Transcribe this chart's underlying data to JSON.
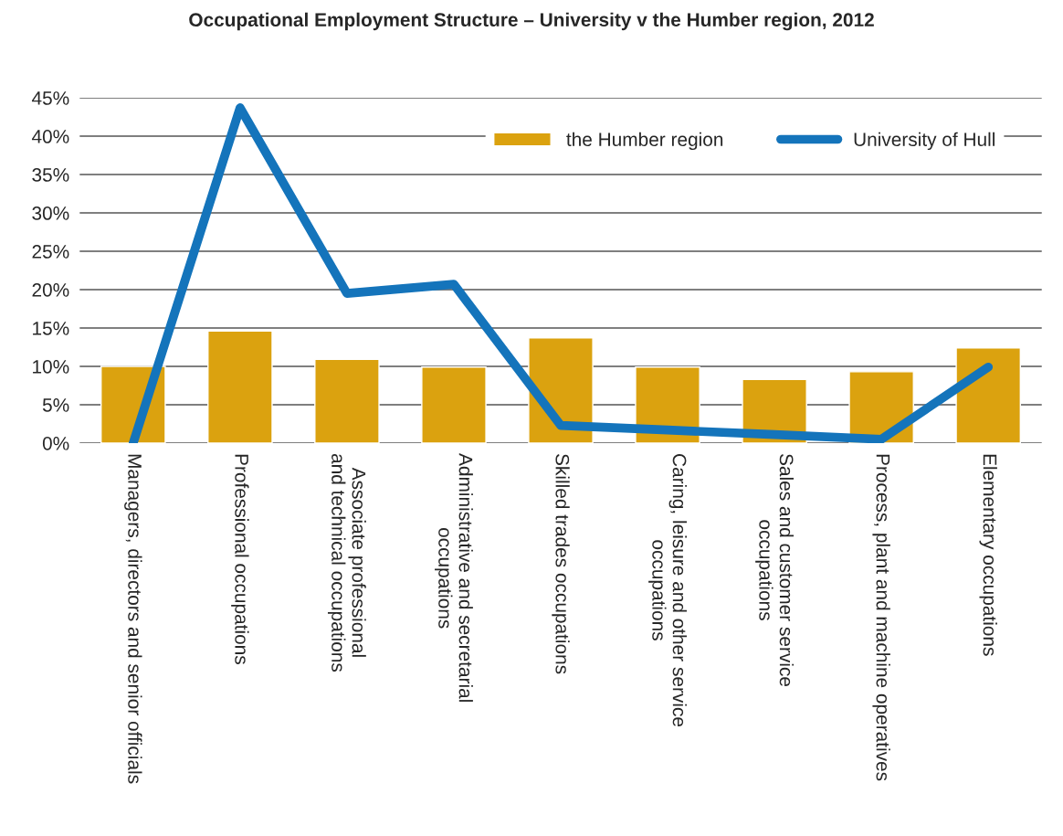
{
  "chart_data": {
    "type": "bar",
    "title": "Occupational Employment Structure – University v the Humber region, 2012",
    "categories": [
      "Managers, directors and senior officials",
      "Professional occupations",
      "Associate professional\nand technical occupations",
      "Administrative and secretarial\noccupations",
      "Skilled trades occupations",
      "Caring, leisure and other service\noccupations",
      "Sales and customer service\noccupations",
      "Process, plant and machine operatives",
      "Elementary occupations"
    ],
    "series": [
      {
        "name": "the Humber region",
        "color": "#dba20f",
        "values": [
          10,
          14.6,
          10.9,
          9.9,
          13.7,
          9.9,
          8.3,
          9.3,
          12.4
        ]
      },
      {
        "name": "University of Hull",
        "type": "line",
        "color": "#1474bb",
        "values": [
          0,
          43.7,
          19.5,
          20.7,
          2.3,
          1.7,
          1.1,
          0.5,
          9.9
        ]
      }
    ],
    "ylim": [
      0,
      45
    ],
    "yticks": [
      {
        "value": 0,
        "label": "0%"
      },
      {
        "value": 5,
        "label": "5%"
      },
      {
        "value": 10,
        "label": "10%"
      },
      {
        "value": 15,
        "label": "15%"
      },
      {
        "value": 20,
        "label": "20%"
      },
      {
        "value": 25,
        "label": "25%"
      },
      {
        "value": 30,
        "label": "30%"
      },
      {
        "value": 35,
        "label": "35%"
      },
      {
        "value": 40,
        "label": "40%"
      },
      {
        "value": 45,
        "label": "45%"
      }
    ],
    "grid": "y",
    "legend": "top right"
  }
}
